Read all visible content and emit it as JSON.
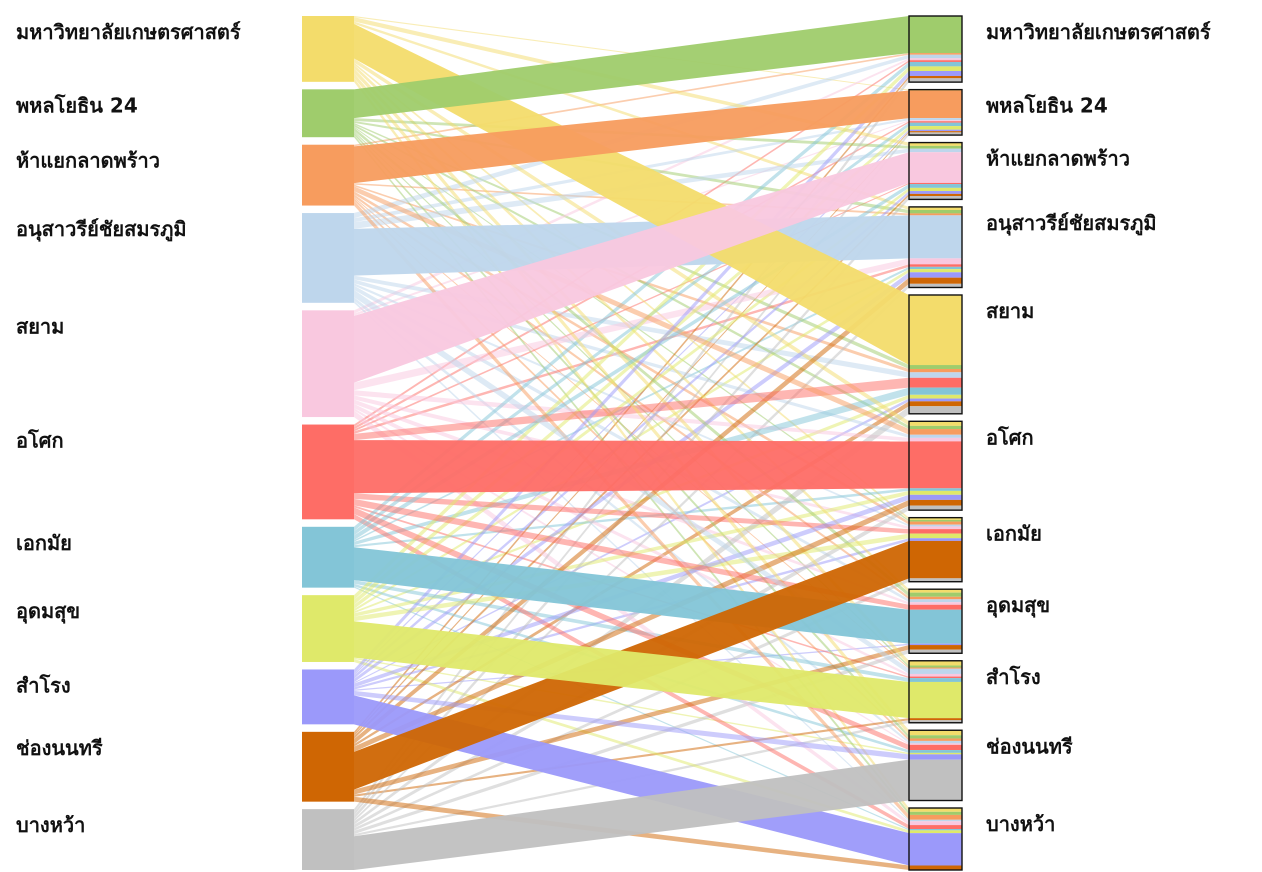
{
  "title": "",
  "stations": [
    {
      "name": "มหาวิทยาลัยเกษตรศาสตร์",
      "color": "#f3dc6b",
      "out": 66,
      "in": 64
    },
    {
      "name": "พหลโยธิน 24",
      "color": "#9fcc6c",
      "out": 48,
      "in": 44
    },
    {
      "name": "ห้าแยกลาดพร้าว",
      "color": "#f79c5e",
      "out": 61,
      "in": 55
    },
    {
      "name": "อนุสาวรีย์ชัยสมรภูมิ",
      "color": "#bed6ec",
      "out": 90,
      "in": 78
    },
    {
      "name": "สยาม",
      "color": "#f9c8df",
      "out": 107,
      "in": 115
    },
    {
      "name": "อโศก",
      "color": "#fe6d66",
      "out": 95,
      "in": 86
    },
    {
      "name": "เอกมัย",
      "color": "#83c5d7",
      "out": 61,
      "in": 62
    },
    {
      "name": "อุดมสุข",
      "color": "#dfe96a",
      "out": 67,
      "in": 62
    },
    {
      "name": "สำโรง",
      "color": "#9b99fa",
      "out": 55,
      "in": 60
    },
    {
      "name": "ช่องนนทรี",
      "color": "#cf6603",
      "out": 70,
      "in": 68
    },
    {
      "name": "บางหว้า",
      "color": "#c0c0c0",
      "out": 61,
      "in": 60
    }
  ]
}
